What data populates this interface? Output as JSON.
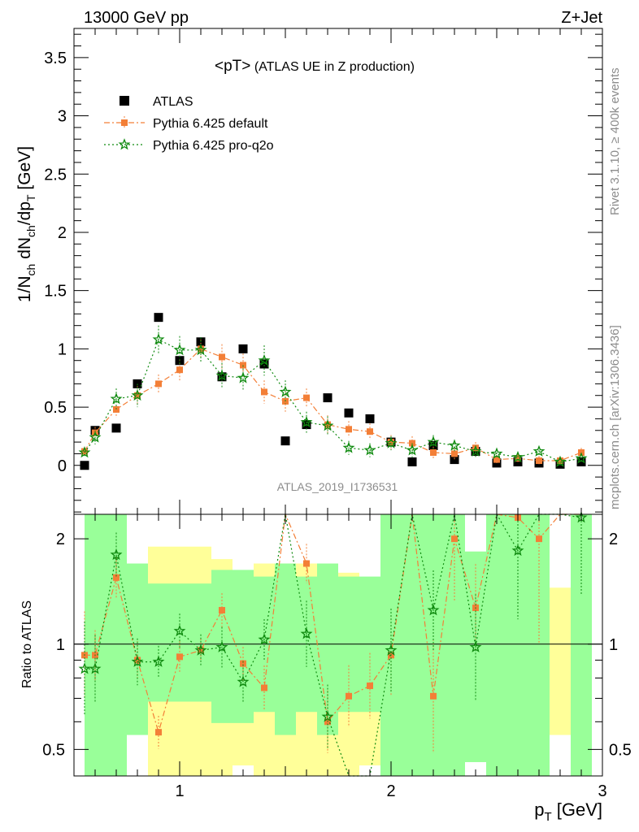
{
  "header": {
    "left": "13000 GeV pp",
    "right": "Z+Jet"
  },
  "side_labels": {
    "rivet": "Rivet 3.1.10, ≥ 400k events",
    "mcplots": "mcplots.cern.ch [arXiv:1306.3436]"
  },
  "watermark": "ATLAS_2019_I1736531",
  "legend": {
    "title_part1": "<pT>",
    "title_part2": " (ATLAS UE in Z production)",
    "items": [
      {
        "label": "ATLAS",
        "color": "#000000",
        "marker": "square"
      },
      {
        "label": "Pythia 6.425 default",
        "color": "#f37f37",
        "marker": "square"
      },
      {
        "label": "Pythia 6.425 pro-q2o",
        "color": "#0f8a0f",
        "marker": "star"
      }
    ]
  },
  "axes": {
    "ylabel_main": "1/N_ch dN_ch/dp_T [GeV]",
    "ylabel_ratio": "Ratio to ATLAS",
    "xlabel": "p_T [GeV]",
    "main_y_ticks": [
      "0",
      "0.5",
      "1",
      "1.5",
      "2",
      "2.5",
      "3",
      "3.5"
    ],
    "ratio_y_ticks": [
      "0.5",
      "1",
      "2"
    ],
    "x_ticks": [
      "1",
      "2",
      "3"
    ]
  },
  "chart_data": {
    "type": "scatter",
    "xlim": [
      0.5,
      3.0
    ],
    "ylim": [
      -0.42,
      3.75
    ],
    "ratio_ylim": [
      0.42,
      2.35
    ],
    "ratio_scale": "log",
    "x": [
      0.55,
      0.6,
      0.7,
      0.8,
      0.9,
      1.0,
      1.1,
      1.2,
      1.3,
      1.4,
      1.5,
      1.6,
      1.7,
      1.8,
      1.9,
      2.0,
      2.1,
      2.2,
      2.3,
      2.4,
      2.5,
      2.6,
      2.7,
      2.8,
      2.9
    ],
    "series": [
      {
        "name": "ATLAS",
        "color": "#000000",
        "values": [
          0.0,
          0.3,
          0.32,
          0.7,
          1.27,
          0.9,
          1.06,
          0.76,
          1.0,
          0.87,
          0.21,
          0.35,
          0.58,
          0.45,
          0.4,
          0.2,
          0.03,
          0.17,
          0.05,
          0.12,
          0.02,
          0.03,
          0.02,
          0.01,
          0.03
        ]
      },
      {
        "name": "Pythia 6.425 default",
        "color": "#f37f37",
        "values": [
          0.12,
          0.28,
          0.48,
          0.6,
          0.7,
          0.82,
          1.0,
          0.93,
          0.86,
          0.63,
          0.55,
          0.58,
          0.35,
          0.31,
          0.29,
          0.2,
          0.19,
          0.11,
          0.1,
          0.15,
          0.05,
          0.06,
          0.04,
          0.04,
          0.11
        ],
        "errors": [
          0.04,
          0.05,
          0.07,
          0.08,
          0.08,
          0.09,
          0.08,
          0.11,
          0.1,
          0.1,
          0.09,
          0.08,
          0.08,
          0.07,
          0.07,
          0.06,
          0.06,
          0.05,
          0.05,
          0.05,
          0.04,
          0.04,
          0.04,
          0.03,
          0.04
        ],
        "ratio": [
          0.93,
          0.93,
          1.55,
          0.9,
          0.56,
          0.92,
          0.96,
          1.25,
          0.88,
          0.75,
          2.6,
          1.7,
          0.6,
          0.71,
          0.76,
          0.93,
          6.0,
          0.71,
          2.0,
          1.27,
          2.5,
          2.3,
          2.0,
          4.0,
          3.7
        ]
      },
      {
        "name": "Pythia 6.425 pro-q2o",
        "color": "#0f8a0f",
        "values": [
          0.11,
          0.24,
          0.57,
          0.6,
          1.08,
          0.99,
          0.99,
          0.77,
          0.75,
          0.9,
          0.63,
          0.37,
          0.34,
          0.15,
          0.13,
          0.19,
          0.13,
          0.2,
          0.17,
          0.12,
          0.1,
          0.07,
          0.12,
          0.03,
          0.06
        ],
        "errors": [
          0.04,
          0.06,
          0.09,
          0.1,
          0.12,
          0.12,
          0.11,
          0.11,
          0.11,
          0.13,
          0.1,
          0.09,
          0.08,
          0.06,
          0.06,
          0.06,
          0.06,
          0.06,
          0.05,
          0.05,
          0.04,
          0.04,
          0.04,
          0.03,
          0.04
        ],
        "ratio": [
          0.85,
          0.85,
          1.8,
          0.89,
          0.89,
          1.09,
          0.96,
          0.98,
          0.78,
          1.03,
          2.9,
          1.07,
          0.62,
          0.33,
          0.32,
          0.96,
          4.5,
          1.25,
          3.4,
          0.98,
          5.0,
          1.85,
          6.0,
          3.0,
          2.3
        ]
      }
    ],
    "uncertainty_bands": {
      "x_edges": [
        0.55,
        0.65,
        0.75,
        0.85,
        0.95,
        1.05,
        1.15,
        1.25,
        1.35,
        1.45,
        1.55,
        1.65,
        1.75,
        1.85,
        1.95,
        2.05,
        2.15,
        2.25,
        2.35,
        2.45,
        2.55,
        2.65,
        2.75,
        2.85,
        2.95
      ],
      "inner_color": "#99ff99",
      "outer_color": "#ffff99"
    }
  }
}
